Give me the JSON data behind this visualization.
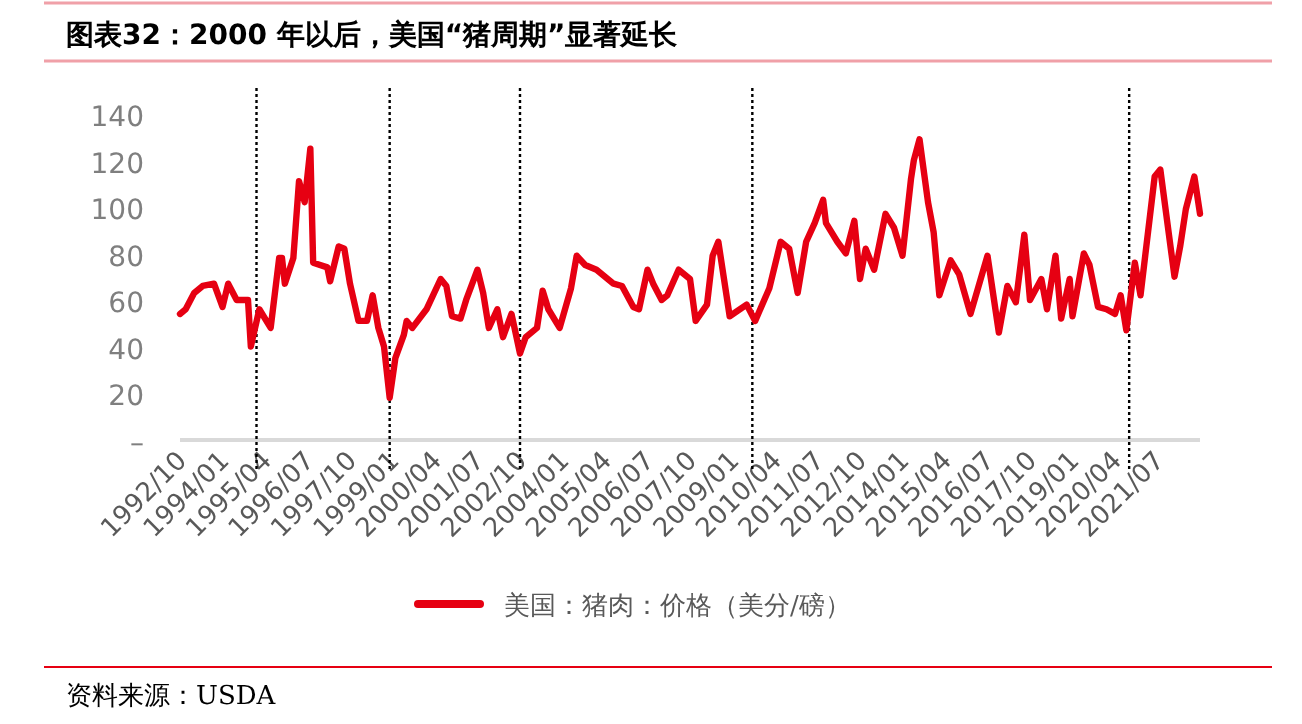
{
  "chart_data": {
    "type": "line",
    "title": "图表32：2000 年以后，美国“猪周期”显著延长",
    "annotations": [
      "资料来源：USDA"
    ],
    "legend": "bottom",
    "grid": false,
    "marker": "none",
    "line_style": "solid",
    "xlim": [
      "1992-10",
      "2022-10"
    ],
    "xticks": [
      {
        "value": "1992-10",
        "label": "1992/10"
      },
      {
        "value": "1994-01",
        "label": "1994/01"
      },
      {
        "value": "1995-04",
        "label": "1995/04"
      },
      {
        "value": "1996-07",
        "label": "1996/07"
      },
      {
        "value": "1997-10",
        "label": "1997/10"
      },
      {
        "value": "1999-01",
        "label": "1999/01"
      },
      {
        "value": "2000-04",
        "label": "2000/04"
      },
      {
        "value": "2001-07",
        "label": "2001/07"
      },
      {
        "value": "2002-10",
        "label": "2002/10"
      },
      {
        "value": "2004-01",
        "label": "2004/01"
      },
      {
        "value": "2005-04",
        "label": "2005/04"
      },
      {
        "value": "2006-07",
        "label": "2006/07"
      },
      {
        "value": "2007-10",
        "label": "2007/10"
      },
      {
        "value": "2009-01",
        "label": "2009/01"
      },
      {
        "value": "2010-04",
        "label": "2010/04"
      },
      {
        "value": "2011-07",
        "label": "2011/07"
      },
      {
        "value": "2012-10",
        "label": "2012/10"
      },
      {
        "value": "2014-01",
        "label": "2014/01"
      },
      {
        "value": "2015-04",
        "label": "2015/04"
      },
      {
        "value": "2016-07",
        "label": "2016/07"
      },
      {
        "value": "2017-10",
        "label": "2017/10"
      },
      {
        "value": "2019-01",
        "label": "2019/01"
      },
      {
        "value": "2020-04",
        "label": "2020/04"
      },
      {
        "value": "2021-07",
        "label": "2021/07"
      }
    ],
    "ylim": [
      0,
      140
    ],
    "yticks": [
      {
        "value": 0,
        "label": "–"
      },
      20,
      40,
      60,
      80,
      100,
      120,
      140
    ],
    "ref_lines": [
      {
        "axis": "x",
        "value": "1995-01",
        "color": "#000000",
        "line_style": "dotted"
      },
      {
        "axis": "x",
        "value": "1998-12",
        "color": "#000000",
        "line_style": "dotted"
      },
      {
        "axis": "x",
        "value": "2002-10",
        "color": "#000000",
        "line_style": "dotted"
      },
      {
        "axis": "x",
        "value": "2009-08",
        "color": "#000000",
        "line_style": "dotted"
      },
      {
        "axis": "x",
        "value": "2020-09",
        "color": "#000000",
        "line_style": "dotted"
      }
    ],
    "series": [
      {
        "name": "美国：猪肉：价格（美分/磅）",
        "color": "#e60012",
        "x": [
          "1992-10",
          "1992-12",
          "1993-03",
          "1993-06",
          "1993-10",
          "1994-01",
          "1994-03",
          "1994-06",
          "1994-10",
          "1994-11",
          "1995-02",
          "1995-06",
          "1995-09",
          "1995-10",
          "1995-11",
          "1996-02",
          "1996-04",
          "1996-06",
          "1996-08",
          "1996-09",
          "1997-02",
          "1997-03",
          "1997-06",
          "1997-08",
          "1997-10",
          "1998-01",
          "1998-04",
          "1998-06",
          "1998-08",
          "1998-10",
          "1998-12",
          "1999-02",
          "1999-05",
          "1999-06",
          "1999-08",
          "2000-01",
          "2000-06",
          "2000-08",
          "2000-10",
          "2001-01",
          "2001-03",
          "2001-07",
          "2001-09",
          "2001-11",
          "2002-02",
          "2002-04",
          "2002-07",
          "2002-10",
          "2002-12",
          "2003-04",
          "2003-06",
          "2003-08",
          "2003-12",
          "2004-04",
          "2004-06",
          "2004-09",
          "2005-01",
          "2005-04",
          "2005-07",
          "2005-10",
          "2006-02",
          "2006-04",
          "2006-07",
          "2006-09",
          "2006-12",
          "2007-02",
          "2007-06",
          "2007-10",
          "2007-12",
          "2008-04",
          "2008-06",
          "2008-08",
          "2008-10",
          "2008-12",
          "2009-06",
          "2009-09",
          "2010-02",
          "2010-06",
          "2010-09",
          "2010-12",
          "2011-03",
          "2011-06",
          "2011-09",
          "2011-10",
          "2012-02",
          "2012-05",
          "2012-08",
          "2012-10",
          "2012-12",
          "2013-03",
          "2013-07",
          "2013-10",
          "2014-01",
          "2014-04",
          "2014-05",
          "2014-07",
          "2014-10",
          "2014-12",
          "2015-02",
          "2015-06",
          "2015-09",
          "2016-01",
          "2016-07",
          "2016-11",
          "2017-02",
          "2017-05",
          "2017-08",
          "2017-10",
          "2018-02",
          "2018-04",
          "2018-07",
          "2018-09",
          "2018-12",
          "2019-01",
          "2019-05",
          "2019-07",
          "2019-10",
          "2020-01",
          "2020-04",
          "2020-06",
          "2020-08",
          "2020-11",
          "2021-01",
          "2021-06",
          "2021-08",
          "2022-01",
          "2022-03",
          "2022-05",
          "2022-08",
          "2022-10"
        ],
        "values": [
          55,
          57,
          64,
          67,
          68,
          58,
          68,
          61,
          61,
          41,
          57,
          49,
          79,
          79,
          68,
          79,
          112,
          103,
          126,
          77,
          75,
          69,
          84,
          83,
          68,
          52,
          52,
          63,
          49,
          41,
          19,
          36,
          46,
          52,
          49,
          57,
          70,
          67,
          54,
          53,
          61,
          74,
          64,
          49,
          57,
          45,
          55,
          38,
          45,
          49,
          65,
          57,
          49,
          66,
          80,
          76,
          74,
          71,
          68,
          67,
          58,
          57,
          74,
          68,
          61,
          63,
          74,
          70,
          52,
          59,
          80,
          86,
          70,
          54,
          59,
          52,
          66,
          86,
          83,
          64,
          86,
          94,
          104,
          94,
          86,
          81,
          95,
          70,
          83,
          74,
          98,
          92,
          80,
          113,
          121,
          130,
          103,
          90,
          63,
          78,
          72,
          55,
          80,
          47,
          67,
          60,
          89,
          61,
          70,
          57,
          80,
          53,
          70,
          54,
          81,
          76,
          58,
          57,
          55,
          63,
          48,
          77,
          63,
          114,
          117,
          71,
          84,
          100,
          114,
          98
        ]
      }
    ]
  }
}
